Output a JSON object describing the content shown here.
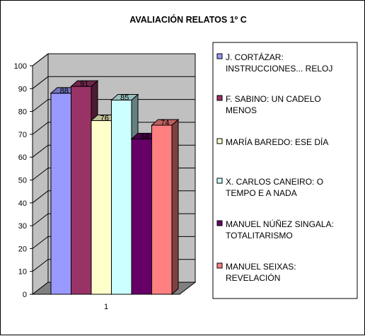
{
  "chart_data": {
    "type": "bar",
    "title": "AVALIACIÓN RELATOS 1º C",
    "categories": [
      "1"
    ],
    "ylim": [
      0,
      100
    ],
    "yticks": [
      0,
      10,
      20,
      30,
      40,
      50,
      60,
      70,
      80,
      90,
      100
    ],
    "grid": true,
    "legend_position": "right",
    "series": [
      {
        "name": "J. CORTÁZAR: INSTRUCCIONES... RELOJ",
        "legend_lines": [
          "J. CORTÁZAR:",
          "INSTRUCCIONES... RELOJ"
        ],
        "values": [
          88
        ],
        "label": "88",
        "color": "#9999ff"
      },
      {
        "name": "F. SABINO: UN CADELO MENOS",
        "legend_lines": [
          "F. SABINO: UN CADELO",
          "MENOS"
        ],
        "values": [
          91
        ],
        "label": "91",
        "color": "#993366"
      },
      {
        "name": "MARÍA BAREDO: ESE DÍA",
        "legend_lines": [
          "MARÍA BAREDO: ESE DÍA"
        ],
        "values": [
          76
        ],
        "label": "76",
        "color": "#ffffcc"
      },
      {
        "name": "X. CARLOS CANEIRO: O TEMPO E A NADA",
        "legend_lines": [
          "X. CARLOS CANEIRO: O",
          "TEMPO E A NADA"
        ],
        "values": [
          85
        ],
        "label": "85",
        "color": "#ccffff"
      },
      {
        "name": "MANUEL NÚÑEZ SINGALA: TOTALITARISMO",
        "legend_lines": [
          "MANUEL NÚÑEZ SINGALA:",
          "TOTALITARISMO"
        ],
        "values": [
          68
        ],
        "label": "68",
        "color": "#660066"
      },
      {
        "name": "MANUEL SEIXAS: REVELACIÓN",
        "legend_lines": [
          "MANUEL SEIXAS:",
          "REVELACIÓN"
        ],
        "values": [
          74
        ],
        "label": "74",
        "color": "#ff8080"
      }
    ],
    "colors": {
      "wall": "#c0c0c0",
      "floor": "#808080",
      "gridline": "#000000"
    }
  }
}
